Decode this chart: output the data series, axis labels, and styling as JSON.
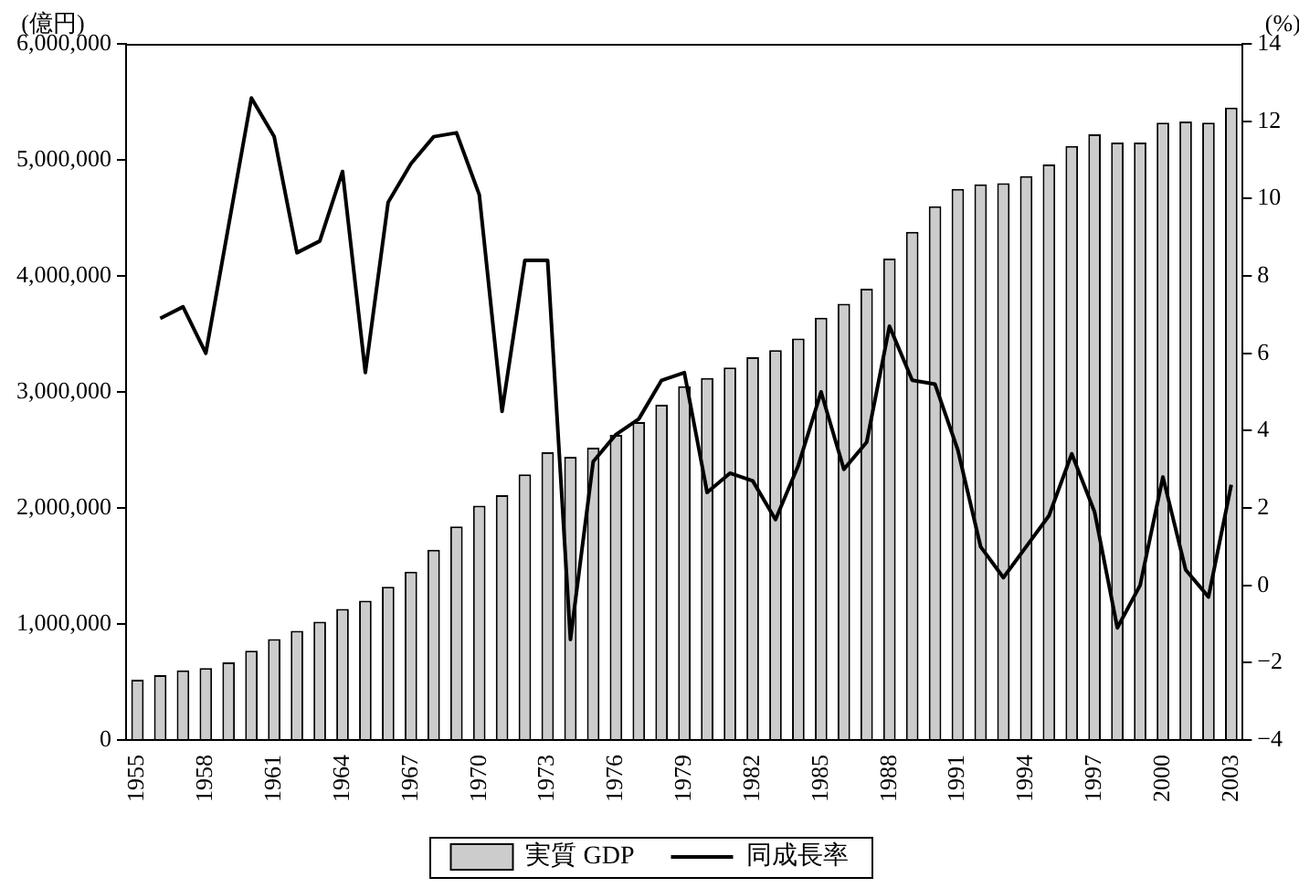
{
  "chart_data": {
    "type": "bar",
    "ylabel": "(億円)",
    "y2label": "(%)",
    "categories": [
      "1955",
      null,
      null,
      "1958",
      null,
      null,
      "1961",
      null,
      null,
      "1964",
      null,
      null,
      "1967",
      null,
      null,
      "1970",
      null,
      null,
      "1973",
      null,
      null,
      "1976",
      null,
      null,
      "1979",
      null,
      null,
      "1982",
      null,
      null,
      "1985",
      null,
      null,
      "1988",
      null,
      null,
      "1991",
      null,
      null,
      "1994",
      null,
      null,
      "1997",
      null,
      null,
      "2000",
      null,
      null,
      "2003"
    ],
    "series": [
      {
        "name": "実質 GDP",
        "color": "#cccccc",
        "values": [
          520000,
          560000,
          600000,
          620000,
          670000,
          770000,
          870000,
          940000,
          1020000,
          1130000,
          1200000,
          1320000,
          1450000,
          1640000,
          1840000,
          2020000,
          2110000,
          2290000,
          2480000,
          2440000,
          2520000,
          2630000,
          2740000,
          2890000,
          3050000,
          3120000,
          3210000,
          3300000,
          3360000,
          3460000,
          3640000,
          3760000,
          3890000,
          4150000,
          4380000,
          4600000,
          4750000,
          4790000,
          4800000,
          4860000,
          4960000,
          5120000,
          5220000,
          5150000,
          5150000,
          5320000,
          5330000,
          5320000,
          5450000
        ]
      },
      {
        "name": "同成長率",
        "type": "line",
        "axis": "y2",
        "color": "#000000",
        "values": [
          null,
          6.9,
          7.2,
          6.0,
          9.3,
          12.6,
          11.6,
          8.6,
          8.9,
          10.7,
          5.5,
          9.9,
          10.9,
          11.6,
          11.7,
          10.1,
          4.5,
          8.4,
          8.4,
          -1.4,
          3.2,
          3.9,
          4.3,
          5.3,
          5.5,
          2.4,
          2.9,
          2.7,
          1.7,
          3.1,
          5.0,
          3.0,
          3.7,
          6.7,
          5.3,
          5.2,
          3.5,
          1.0,
          0.2,
          1.0,
          1.8,
          3.4,
          1.9,
          -1.1,
          0.0,
          2.8,
          0.4,
          -0.3,
          2.6
        ]
      }
    ],
    "ylim": [
      0,
      6000000
    ],
    "yticks": [
      0,
      {
        "value": 1000000,
        "label": "1,000,000"
      },
      {
        "value": 2000000,
        "label": "2,000,000"
      },
      {
        "value": 3000000,
        "label": "3,000,000"
      },
      {
        "value": 4000000,
        "label": "4,000,000"
      },
      {
        "value": 5000000,
        "label": "5,000,000"
      },
      {
        "value": 6000000,
        "label": "6,000,000"
      }
    ],
    "y2lim": [
      -4,
      14
    ],
    "y2ticks": [
      {
        "value": -4,
        "label": "−4"
      },
      {
        "value": -2,
        "label": "−2"
      },
      0,
      2,
      4,
      6,
      8,
      10,
      12,
      14
    ],
    "grid": false,
    "legend": "bottom",
    "marker": "none",
    "line_style": "solid"
  }
}
